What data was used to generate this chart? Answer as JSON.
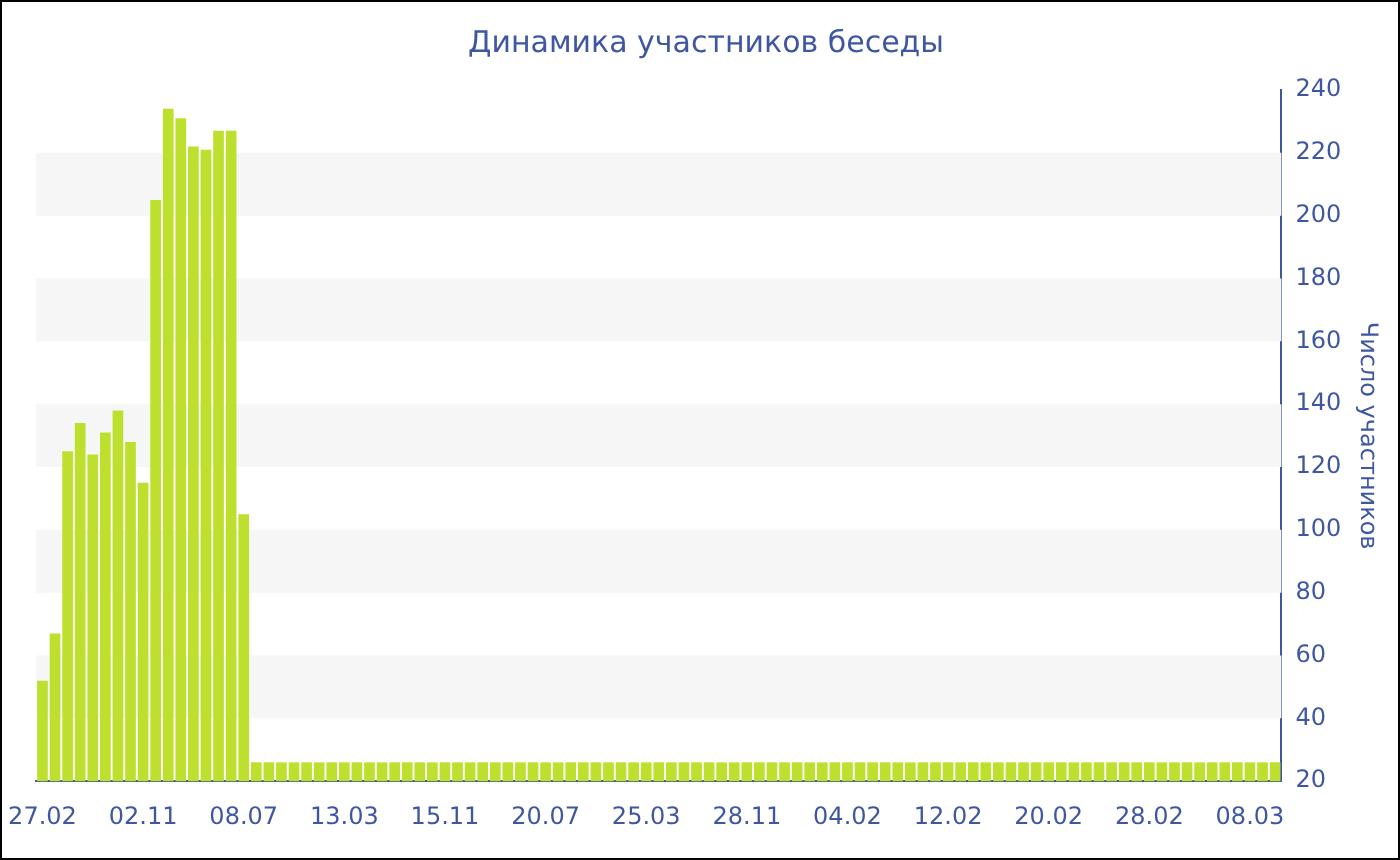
{
  "chart_data": {
    "type": "bar",
    "title": "Динамика участников беседы",
    "ylabel": "Число участников",
    "categories": [
      "27.02",
      null,
      null,
      null,
      null,
      null,
      null,
      null,
      "02.11",
      null,
      null,
      null,
      null,
      null,
      null,
      null,
      "08.07",
      null,
      null,
      null,
      null,
      null,
      null,
      null,
      "13.03",
      null,
      null,
      null,
      null,
      null,
      null,
      null,
      "15.11",
      null,
      null,
      null,
      null,
      null,
      null,
      null,
      "20.07",
      null,
      null,
      null,
      null,
      null,
      null,
      null,
      "25.03",
      null,
      null,
      null,
      null,
      null,
      null,
      null,
      "28.11",
      null,
      null,
      null,
      null,
      null,
      null,
      null,
      "04.02",
      null,
      null,
      null,
      null,
      null,
      null,
      null,
      "12.02",
      null,
      null,
      null,
      null,
      null,
      null,
      null,
      "20.02",
      null,
      null,
      null,
      null,
      null,
      null,
      null,
      "28.02",
      null,
      null,
      null,
      null,
      null,
      null,
      null,
      "08.03",
      null,
      null
    ],
    "values": [
      52,
      67,
      125,
      134,
      124,
      131,
      138,
      128,
      115,
      205,
      234,
      231,
      222,
      221,
      227,
      227,
      105,
      26,
      26,
      26,
      26,
      26,
      26,
      26,
      26,
      26,
      26,
      26,
      26,
      26,
      26,
      26,
      26,
      26,
      26,
      26,
      26,
      26,
      26,
      26,
      26,
      26,
      26,
      26,
      26,
      26,
      26,
      26,
      26,
      26,
      26,
      26,
      26,
      26,
      26,
      26,
      26,
      26,
      26,
      26,
      26,
      26,
      26,
      26,
      26,
      26,
      26,
      26,
      26,
      26,
      26,
      26,
      26,
      26,
      26,
      26,
      26,
      26,
      26,
      26,
      26,
      26,
      26,
      26,
      26,
      26,
      26,
      26,
      26,
      26,
      26,
      26,
      26,
      26,
      26,
      26,
      26,
      26,
      26
    ],
    "color": "#bde02e",
    "ylim": [
      20,
      240
    ],
    "yticks": [
      20,
      40,
      60,
      80,
      100,
      120,
      140,
      160,
      180,
      200,
      220,
      240
    ],
    "legend": false,
    "bands": [
      {
        "axis": "y",
        "from": 40,
        "to": 60,
        "color": "#f6f6f6"
      },
      {
        "axis": "y",
        "from": 80,
        "to": 100,
        "color": "#f6f6f6"
      },
      {
        "axis": "y",
        "from": 120,
        "to": 140,
        "color": "#f6f6f6"
      },
      {
        "axis": "y",
        "from": 160,
        "to": 180,
        "color": "#f6f6f6"
      },
      {
        "axis": "y",
        "from": 200,
        "to": 220,
        "color": "#f6f6f6"
      }
    ]
  }
}
